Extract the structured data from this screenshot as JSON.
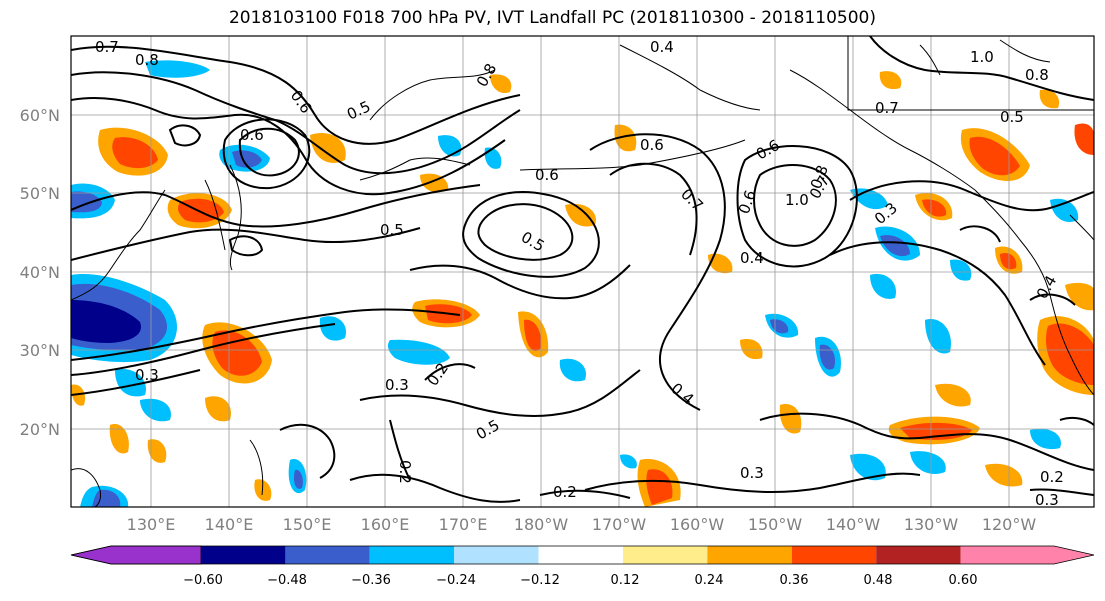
{
  "title": "2018103100 F018 700 hPa PV, IVT Landfall PC (2018110300 - 2018110500)",
  "map": {
    "lat_labels": [
      "60°N",
      "50°N",
      "40°N",
      "30°N",
      "20°N"
    ],
    "lon_labels": [
      "130°E",
      "140°E",
      "150°E",
      "160°E",
      "170°E",
      "180°W",
      "170°W",
      "160°W",
      "150°W",
      "140°W",
      "130°W",
      "120°W"
    ],
    "contour_labels": [
      "0.7",
      "0.8",
      "0.6",
      "0.5",
      "0.6",
      "0.5",
      "0.6",
      "0.7",
      "0.8",
      "0.4",
      "0.6",
      "0.5",
      "0.7",
      "0.6",
      "1.0",
      "0.8",
      "0.4",
      "0.3",
      "0.2",
      "0.4",
      "0.3",
      "0.3",
      "0.2",
      "0.2",
      "0.3",
      "0.3",
      "0.2",
      "1.0",
      "0.8",
      "0.7",
      "0.5",
      "0.4",
      "0.5",
      "0.6"
    ],
    "colors": {
      "neg_060": "#9932CC",
      "neg_048": "#00008B",
      "neg_036": "#3A5FCD",
      "neg_024": "#00BFFF",
      "neg_012": "#B0E2FF",
      "zero": "#FFFFFF",
      "pos_012": "#FFEC8B",
      "pos_024": "#FFA500",
      "pos_036": "#FF4500",
      "pos_048": "#B22222",
      "pos_060": "#FF82AB"
    }
  },
  "colorbar": {
    "ticks": [
      "−0.60",
      "−0.48",
      "−0.36",
      "−0.24",
      "−0.12",
      "0.12",
      "0.24",
      "0.36",
      "0.48",
      "0.60"
    ],
    "colors": [
      "#9932CC",
      "#00008B",
      "#3A5FCD",
      "#00BFFF",
      "#B0E2FF",
      "#FFFFFF",
      "#FFEC8B",
      "#FFA500",
      "#FF4500",
      "#B22222",
      "#FF82AB"
    ]
  }
}
